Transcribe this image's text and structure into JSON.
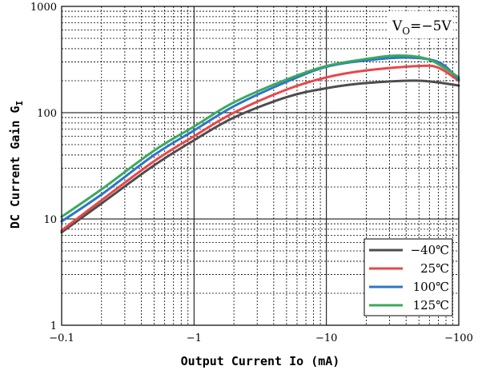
{
  "chart_data": {
    "type": "line",
    "xlabel": "Output Current Io (mA)",
    "ylabel": "DC Current Gain G",
    "ylabel_sub": "I",
    "x_scale": "log",
    "y_scale": "log",
    "xlim": [
      0.1,
      100
    ],
    "ylim": [
      1,
      1000
    ],
    "x_tick_labels": [
      "−0.1",
      "−1",
      "−10",
      "−100"
    ],
    "y_tick_labels": [
      "1",
      "10",
      "100",
      "1000"
    ],
    "grid": true,
    "legend_position": "bottom-right",
    "annotation": {
      "prefix": "V",
      "sub": "O",
      "suffix": "=−5V"
    },
    "series": [
      {
        "name": "−40℃",
        "color": "#4d4d4d",
        "x": [
          0.1,
          0.2,
          0.5,
          1,
          2,
          5,
          10,
          20,
          50,
          100
        ],
        "y": [
          7.5,
          14,
          32,
          55,
          90,
          140,
          170,
          190,
          200,
          180
        ]
      },
      {
        "name": "25℃",
        "color": "#e8474a",
        "x": [
          0.1,
          0.2,
          0.5,
          1,
          2,
          5,
          10,
          20,
          50,
          70,
          100
        ],
        "y": [
          7.8,
          15,
          35,
          60,
          100,
          165,
          215,
          250,
          275,
          265,
          200
        ]
      },
      {
        "name": "100℃",
        "color": "#2f74c8",
        "x": [
          0.1,
          0.2,
          0.5,
          1,
          2,
          5,
          10,
          20,
          40,
          70,
          100
        ],
        "y": [
          9.5,
          17,
          40,
          68,
          115,
          195,
          270,
          310,
          330,
          300,
          205
        ]
      },
      {
        "name": "125℃",
        "color": "#3aaa5c",
        "x": [
          0.1,
          0.2,
          0.5,
          1,
          2,
          5,
          10,
          20,
          35,
          60,
          100
        ],
        "y": [
          10.5,
          19,
          44,
          74,
          125,
          205,
          275,
          320,
          345,
          315,
          215
        ]
      }
    ]
  }
}
